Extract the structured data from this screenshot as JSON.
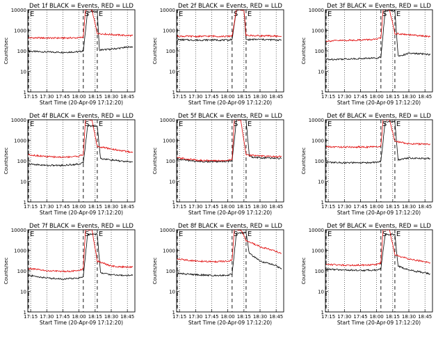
{
  "figure": {
    "ylabel": "Counts/sec",
    "xlabel": "Start Time (20-Apr-09 17:12:20)",
    "x_tick_labels": [
      "17:15",
      "17:30",
      "17:45",
      "18:00",
      "18:15",
      "18:30",
      "18:45"
    ],
    "y_tick_labels": [
      "1",
      "10",
      "100",
      "1000",
      "10000"
    ],
    "marker_labels": [
      "E",
      "S",
      "E"
    ],
    "colors": {
      "events": "#000000",
      "lld": "#e00000",
      "background": "#ffffff"
    }
  },
  "chart_data": [
    {
      "type": "line",
      "title": "Det 1f BLACK = Events, RED = LLD",
      "xlabel": "Start Time (20-Apr-09 17:12:20)",
      "ylabel": "Counts/sec",
      "y_scale": "log",
      "ylim": [
        1,
        10000
      ],
      "x_range": [
        "17:12:20",
        "18:52"
      ],
      "markers": [
        "17:13",
        "18:04",
        "18:17"
      ],
      "series": [
        {
          "color": "#000000",
          "x": [
            "17:13",
            "17:30",
            "17:45",
            "18:00",
            "18:04",
            "18:08",
            "18:17",
            "18:19",
            "18:30",
            "18:45",
            "18:50"
          ],
          "values": [
            95,
            88,
            85,
            90,
            100,
            8000,
            8000,
            110,
            120,
            150,
            160
          ]
        },
        {
          "color": "#e00000",
          "x": [
            "17:13",
            "17:30",
            "17:45",
            "18:00",
            "18:04",
            "18:06",
            "18:12",
            "18:17",
            "18:30",
            "18:45",
            "18:50"
          ],
          "values": [
            430,
            420,
            420,
            430,
            480,
            10000,
            10000,
            700,
            620,
            560,
            550
          ]
        }
      ]
    },
    {
      "type": "line",
      "title": "Det 2f BLACK = Events, RED = LLD",
      "xlabel": "Start Time (20-Apr-09 17:12:20)",
      "ylabel": "Counts/sec",
      "y_scale": "log",
      "ylim": [
        1,
        10000
      ],
      "x_range": [
        "17:12:20",
        "18:52"
      ],
      "markers": [
        "17:13",
        "18:04",
        "18:17"
      ],
      "series": [
        {
          "color": "#000000",
          "x": [
            "17:13",
            "17:30",
            "17:45",
            "18:00",
            "18:04",
            "18:08",
            "18:15",
            "18:17",
            "18:30",
            "18:45",
            "18:50"
          ],
          "values": [
            350,
            330,
            340,
            330,
            360,
            10000,
            10000,
            350,
            360,
            340,
            330
          ]
        },
        {
          "color": "#e00000",
          "x": [
            "17:13",
            "17:30",
            "17:45",
            "18:00",
            "18:04",
            "18:08",
            "18:15",
            "18:17",
            "18:30",
            "18:45",
            "18:50"
          ],
          "values": [
            520,
            500,
            520,
            500,
            540,
            10000,
            10000,
            560,
            540,
            520,
            500
          ]
        }
      ]
    },
    {
      "type": "line",
      "title": "Det 3f BLACK = Events, RED = LLD",
      "xlabel": "Start Time (20-Apr-09 17:12:20)",
      "ylabel": "Counts/sec",
      "y_scale": "log",
      "ylim": [
        1,
        10000
      ],
      "x_range": [
        "17:12:20",
        "18:52"
      ],
      "markers": [
        "17:13",
        "18:04",
        "18:17"
      ],
      "series": [
        {
          "color": "#000000",
          "x": [
            "17:13",
            "17:30",
            "17:45",
            "18:00",
            "18:04",
            "18:08",
            "18:17",
            "18:20",
            "18:30",
            "18:45",
            "18:50"
          ],
          "values": [
            38,
            40,
            42,
            45,
            50,
            9000,
            9000,
            55,
            75,
            70,
            65
          ]
        },
        {
          "color": "#e00000",
          "x": [
            "17:13",
            "17:30",
            "17:45",
            "18:00",
            "18:04",
            "18:06",
            "18:12",
            "18:17",
            "18:30",
            "18:45",
            "18:50"
          ],
          "values": [
            300,
            320,
            340,
            360,
            420,
            10000,
            10000,
            700,
            600,
            520,
            480
          ]
        }
      ]
    },
    {
      "type": "line",
      "title": "Det 4f BLACK = Events, RED = LLD",
      "xlabel": "Start Time (20-Apr-09 17:12:20)",
      "ylabel": "Counts/sec",
      "y_scale": "log",
      "ylim": [
        1,
        10000
      ],
      "x_range": [
        "17:12:20",
        "18:52"
      ],
      "markers": [
        "17:13",
        "18:04",
        "18:17"
      ],
      "series": [
        {
          "color": "#000000",
          "x": [
            "17:13",
            "17:30",
            "17:45",
            "18:00",
            "18:04",
            "18:08",
            "18:17",
            "18:20",
            "18:30",
            "18:45",
            "18:50"
          ],
          "values": [
            70,
            60,
            60,
            70,
            80,
            5000,
            5000,
            130,
            110,
            90,
            90
          ]
        },
        {
          "color": "#e00000",
          "x": [
            "17:13",
            "17:30",
            "17:45",
            "18:00",
            "18:04",
            "18:06",
            "18:12",
            "18:17",
            "18:30",
            "18:45",
            "18:50"
          ],
          "values": [
            200,
            160,
            150,
            170,
            200,
            10000,
            10000,
            500,
            380,
            280,
            270
          ]
        }
      ]
    },
    {
      "type": "line",
      "title": "Det 5f BLACK = Events, RED = LLD",
      "xlabel": "Start Time (20-Apr-09 17:12:20)",
      "ylabel": "Counts/sec",
      "y_scale": "log",
      "ylim": [
        1,
        10000
      ],
      "x_range": [
        "17:12:20",
        "18:52"
      ],
      "markers": [
        "17:13",
        "18:04",
        "18:17"
      ],
      "series": [
        {
          "color": "#000000",
          "x": [
            "17:13",
            "17:30",
            "17:45",
            "18:00",
            "18:04",
            "18:08",
            "18:17",
            "18:20",
            "18:30",
            "18:45",
            "18:50"
          ],
          "values": [
            120,
            95,
            90,
            95,
            100,
            10000,
            10000,
            160,
            140,
            135,
            130
          ]
        },
        {
          "color": "#e00000",
          "x": [
            "17:13",
            "17:30",
            "17:45",
            "18:00",
            "18:04",
            "18:06",
            "18:12",
            "18:17",
            "18:30",
            "18:45",
            "18:50"
          ],
          "values": [
            140,
            110,
            100,
            105,
            115,
            10000,
            10000,
            200,
            170,
            160,
            160
          ]
        }
      ]
    },
    {
      "type": "line",
      "title": "Det 6f BLACK = Events, RED = LLD",
      "xlabel": "Start Time (20-Apr-09 17:12:20)",
      "ylabel": "Counts/sec",
      "y_scale": "log",
      "ylim": [
        1,
        10000
      ],
      "x_range": [
        "17:12:20",
        "18:52"
      ],
      "markers": [
        "17:13",
        "18:04",
        "18:17"
      ],
      "series": [
        {
          "color": "#000000",
          "x": [
            "17:13",
            "17:30",
            "17:45",
            "18:00",
            "18:04",
            "18:08",
            "18:17",
            "18:20",
            "18:30",
            "18:45",
            "18:50"
          ],
          "values": [
            85,
            80,
            80,
            85,
            95,
            8000,
            8000,
            110,
            140,
            130,
            130
          ]
        },
        {
          "color": "#e00000",
          "x": [
            "17:13",
            "17:30",
            "17:45",
            "18:00",
            "18:04",
            "18:06",
            "18:12",
            "18:17",
            "18:30",
            "18:45",
            "18:50"
          ],
          "values": [
            480,
            470,
            470,
            480,
            520,
            10000,
            10000,
            900,
            680,
            650,
            640
          ]
        }
      ]
    },
    {
      "type": "line",
      "title": "Det 7f BLACK = Events, RED = LLD",
      "xlabel": "Start Time (20-Apr-09 17:12:20)",
      "ylabel": "Counts/sec",
      "y_scale": "log",
      "ylim": [
        1,
        10000
      ],
      "x_range": [
        "17:12:20",
        "18:52"
      ],
      "markers": [
        "17:13",
        "18:04",
        "18:17"
      ],
      "series": [
        {
          "color": "#000000",
          "x": [
            "17:13",
            "17:30",
            "17:45",
            "18:00",
            "18:04",
            "18:08",
            "18:17",
            "18:20",
            "18:30",
            "18:45",
            "18:50"
          ],
          "values": [
            60,
            45,
            40,
            45,
            55,
            6000,
            6000,
            80,
            65,
            60,
            65
          ]
        },
        {
          "color": "#e00000",
          "x": [
            "17:13",
            "17:30",
            "17:45",
            "18:00",
            "18:04",
            "18:06",
            "18:12",
            "18:17",
            "18:30",
            "18:45",
            "18:50"
          ],
          "values": [
            130,
            100,
            95,
            100,
            130,
            10000,
            10000,
            300,
            170,
            150,
            160
          ]
        }
      ]
    },
    {
      "type": "line",
      "title": "Det 8f BLACK = Events, RED = LLD",
      "xlabel": "Start Time (20-Apr-09 17:12:20)",
      "ylabel": "Counts/sec",
      "y_scale": "log",
      "ylim": [
        1,
        10000
      ],
      "x_range": [
        "17:12:20",
        "18:52"
      ],
      "markers": [
        "17:13",
        "18:04",
        "18:17"
      ],
      "series": [
        {
          "color": "#000000",
          "x": [
            "17:13",
            "17:30",
            "17:45",
            "18:00",
            "18:04",
            "18:08",
            "18:17",
            "18:20",
            "18:30",
            "18:45",
            "18:50"
          ],
          "values": [
            75,
            65,
            60,
            62,
            70,
            7000,
            7000,
            700,
            300,
            180,
            120
          ]
        },
        {
          "color": "#e00000",
          "x": [
            "17:13",
            "17:30",
            "17:45",
            "18:00",
            "18:04",
            "18:06",
            "18:12",
            "18:17",
            "18:30",
            "18:45",
            "18:50"
          ],
          "values": [
            380,
            300,
            280,
            290,
            330,
            10000,
            10000,
            3000,
            1500,
            900,
            700
          ]
        }
      ]
    },
    {
      "type": "line",
      "title": "Det 9f BLACK = Events, RED = LLD",
      "xlabel": "Start Time (20-Apr-09 17:12:20)",
      "ylabel": "Counts/sec",
      "y_scale": "log",
      "ylim": [
        1,
        10000
      ],
      "x_range": [
        "17:12:20",
        "18:52"
      ],
      "markers": [
        "17:13",
        "18:04",
        "18:17"
      ],
      "series": [
        {
          "color": "#000000",
          "x": [
            "17:13",
            "17:30",
            "17:45",
            "18:00",
            "18:04",
            "18:08",
            "18:17",
            "18:20",
            "18:30",
            "18:45",
            "18:50"
          ],
          "values": [
            120,
            110,
            105,
            110,
            130,
            6000,
            6000,
            170,
            110,
            80,
            70
          ]
        },
        {
          "color": "#e00000",
          "x": [
            "17:13",
            "17:30",
            "17:45",
            "18:00",
            "18:04",
            "18:06",
            "18:12",
            "18:17",
            "18:30",
            "18:45",
            "18:50"
          ],
          "values": [
            210,
            190,
            190,
            200,
            250,
            10000,
            10000,
            600,
            380,
            280,
            250
          ]
        }
      ]
    }
  ]
}
